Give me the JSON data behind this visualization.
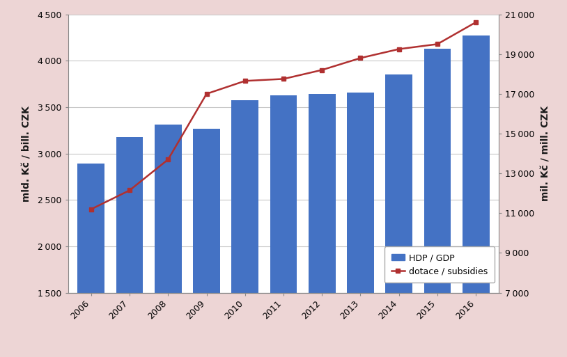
{
  "years": [
    2006,
    2007,
    2008,
    2009,
    2010,
    2011,
    2012,
    2013,
    2014,
    2015,
    2016
  ],
  "gdp_values": [
    2890,
    3180,
    3310,
    3270,
    3575,
    3630,
    3640,
    3660,
    3855,
    4130,
    4270
  ],
  "subsidies_values": [
    11200,
    12150,
    13700,
    17000,
    17650,
    17750,
    18200,
    18800,
    19250,
    19500,
    20600
  ],
  "bar_color": "#4472C4",
  "line_color": "#B03030",
  "line_marker": "s",
  "background_color": "#EDD5D5",
  "plot_background": "#FFFFFF",
  "ylabel_left": "mld. Kč / bill. CZK",
  "ylabel_right": "mil. Kč / mill. CZK",
  "ylim_left": [
    1500,
    4500
  ],
  "ylim_right": [
    7000,
    21000
  ],
  "yticks_left": [
    1500,
    2000,
    2500,
    3000,
    3500,
    4000,
    4500
  ],
  "yticks_right": [
    7000,
    9000,
    11000,
    13000,
    15000,
    17000,
    19000,
    21000
  ],
  "legend_labels": [
    "HDP / GDP",
    "dotace / subsidies"
  ],
  "grid_color": "#C8C8C8",
  "spine_color": "#888888",
  "tick_label_fontsize": 9,
  "axis_label_fontsize": 10,
  "legend_fontsize": 9,
  "bar_width": 0.7
}
